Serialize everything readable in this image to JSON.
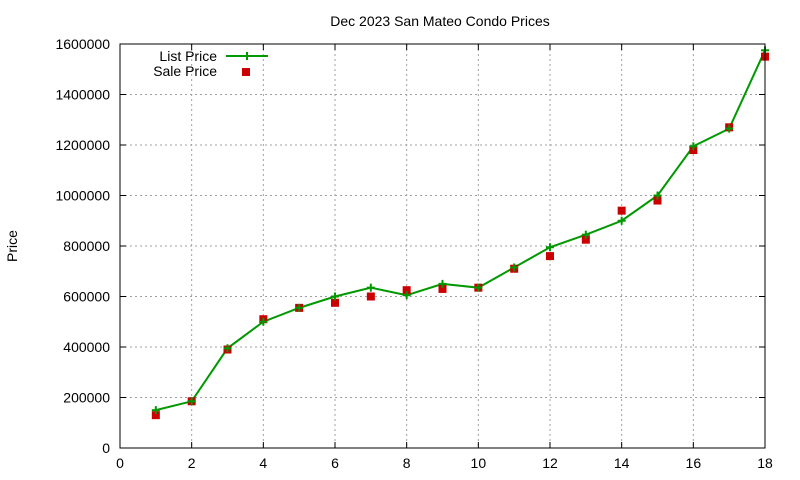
{
  "chart_data": {
    "type": "line",
    "title": "Dec 2023 San Mateo Condo Prices",
    "xlabel": "",
    "ylabel": "Price",
    "xlim": [
      0,
      18
    ],
    "ylim": [
      0,
      1600000
    ],
    "xticks": [
      0,
      2,
      4,
      6,
      8,
      10,
      12,
      14,
      16,
      18
    ],
    "yticks": [
      0,
      200000,
      400000,
      600000,
      800000,
      1000000,
      1200000,
      1400000,
      1600000
    ],
    "grid": true,
    "legend_position": "top-left",
    "series": [
      {
        "name": "List Price",
        "style": "line-with-plus-markers",
        "color": "#009900",
        "x": [
          1,
          2,
          3,
          4,
          5,
          6,
          7,
          8,
          9,
          10,
          11,
          12,
          13,
          14,
          15,
          16,
          17,
          18
        ],
        "y": [
          150000,
          185000,
          395000,
          500000,
          555000,
          600000,
          635000,
          605000,
          650000,
          635000,
          715000,
          795000,
          845000,
          900000,
          1000000,
          1195000,
          1265000,
          1575000
        ]
      },
      {
        "name": "Sale Price",
        "style": "square-markers",
        "color": "#cc0000",
        "x": [
          1,
          2,
          3,
          4,
          5,
          6,
          7,
          8,
          9,
          10,
          11,
          12,
          13,
          14,
          15,
          16,
          17,
          18
        ],
        "y": [
          130000,
          185000,
          390000,
          510000,
          555000,
          575000,
          600000,
          625000,
          630000,
          635000,
          710000,
          760000,
          825000,
          940000,
          980000,
          1180000,
          1270000,
          1550000
        ]
      }
    ]
  }
}
